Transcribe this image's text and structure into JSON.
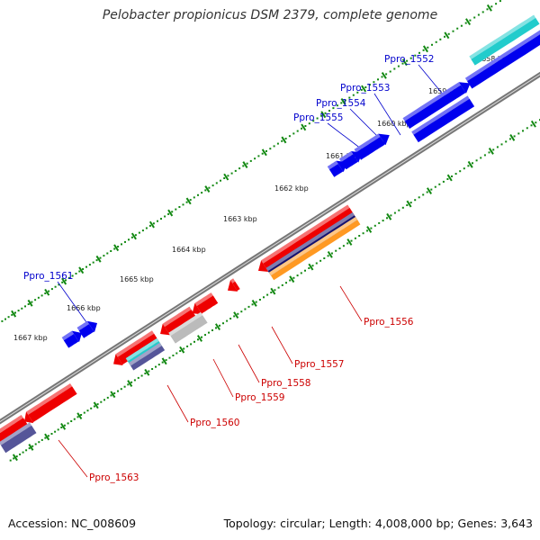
{
  "title": "Pelobacter propionicus DSM 2379, complete genome",
  "footer": {
    "accession": "Accession: NC_008609",
    "summary": "Topology: circular; Length: 4,008,000 bp; Genes: 3,643"
  },
  "colors": {
    "forward_gene": "#0000ee",
    "reverse_gene": "#ee0000",
    "forward_label": "#0000cc",
    "reverse_label": "#cc0000",
    "tick": "#118811",
    "backbone": "#777777",
    "cyan_track": "#22cccc",
    "navy_track": "#121270",
    "orange_track": "#ff9922",
    "grey_track": "#bbbbbb",
    "slate_track": "#555599"
  },
  "ticks": [
    "1658 kbp",
    "1659 kbp",
    "1660 kbp",
    "1661 kbp",
    "1662 kbp",
    "1663 kbp",
    "1664 kbp",
    "1665 kbp",
    "1666 kbp",
    "1667 kbp"
  ],
  "forward_labels": [
    "Ppro_1552",
    "Ppro_1553",
    "Ppro_1554",
    "Ppro_1555",
    "Ppro_1561"
  ],
  "reverse_labels": [
    "Ppro_1556",
    "Ppro_1557",
    "Ppro_1558",
    "Ppro_1559",
    "Ppro_1560",
    "Ppro_1563"
  ]
}
